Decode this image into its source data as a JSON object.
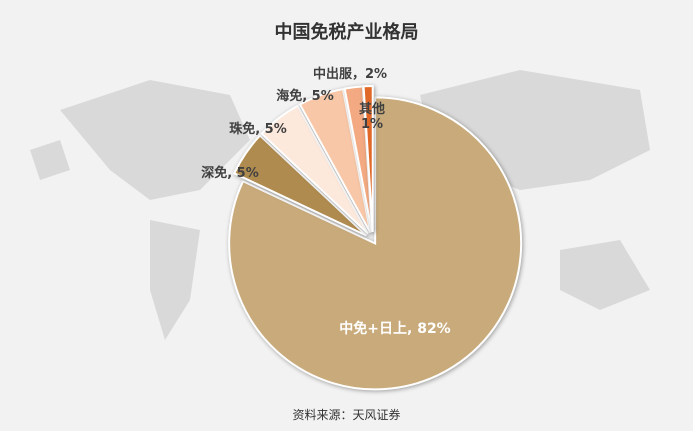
{
  "chart_data": {
    "type": "pie",
    "title": "中国免税产业格局",
    "values": [
      82,
      5,
      5,
      5,
      2,
      1
    ],
    "value_labels": [
      "中免+日上, 82%",
      "深免, 5%",
      "珠免, 5%",
      "海免, 5%",
      "中出服，2%",
      "其他\n1%"
    ],
    "colors": [
      "#c8aa7b",
      "#b08b4f",
      "#fde9dc",
      "#f7c7a7",
      "#f3aa82",
      "#e0692a"
    ],
    "source": "资料来源：天风证券"
  }
}
